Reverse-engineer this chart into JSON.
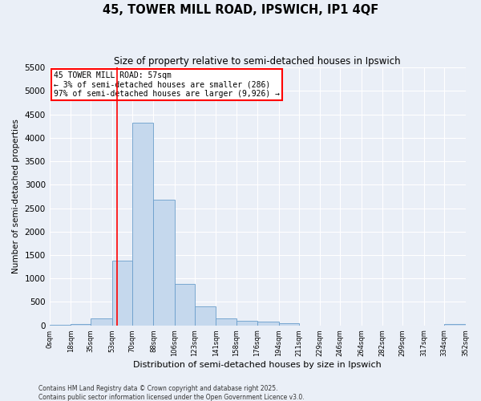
{
  "title": "45, TOWER MILL ROAD, IPSWICH, IP1 4QF",
  "subtitle": "Size of property relative to semi-detached houses in Ipswich",
  "xlabel": "Distribution of semi-detached houses by size in Ipswich",
  "ylabel": "Number of semi-detached properties",
  "bin_edges": [
    0,
    18,
    35,
    53,
    70,
    88,
    106,
    123,
    141,
    158,
    176,
    194,
    211,
    229,
    246,
    264,
    282,
    299,
    317,
    334,
    352
  ],
  "bin_labels": [
    "0sqm",
    "18sqm",
    "35sqm",
    "53sqm",
    "70sqm",
    "88sqm",
    "106sqm",
    "123sqm",
    "141sqm",
    "158sqm",
    "176sqm",
    "194sqm",
    "211sqm",
    "229sqm",
    "246sqm",
    "264sqm",
    "282sqm",
    "299sqm",
    "317sqm",
    "334sqm",
    "352sqm"
  ],
  "counts": [
    20,
    30,
    150,
    1380,
    4320,
    2680,
    890,
    400,
    155,
    100,
    75,
    50,
    0,
    0,
    0,
    0,
    0,
    0,
    0,
    30
  ],
  "bar_color": "#c5d8ed",
  "bar_edge_color": "#6a9ecb",
  "property_size": 57,
  "property_line_color": "red",
  "annotation_line1": "45 TOWER MILL ROAD: 57sqm",
  "annotation_line2": "← 3% of semi-detached houses are smaller (286)",
  "annotation_line3": "97% of semi-detached houses are larger (9,926) →",
  "annotation_box_color": "white",
  "annotation_box_edge_color": "red",
  "ylim": [
    0,
    5500
  ],
  "yticks": [
    0,
    500,
    1000,
    1500,
    2000,
    2500,
    3000,
    3500,
    4000,
    4500,
    5000,
    5500
  ],
  "background_color": "#eaeff7",
  "grid_color": "#ffffff",
  "footer_line1": "Contains HM Land Registry data © Crown copyright and database right 2025.",
  "footer_line2": "Contains public sector information licensed under the Open Government Licence v3.0."
}
